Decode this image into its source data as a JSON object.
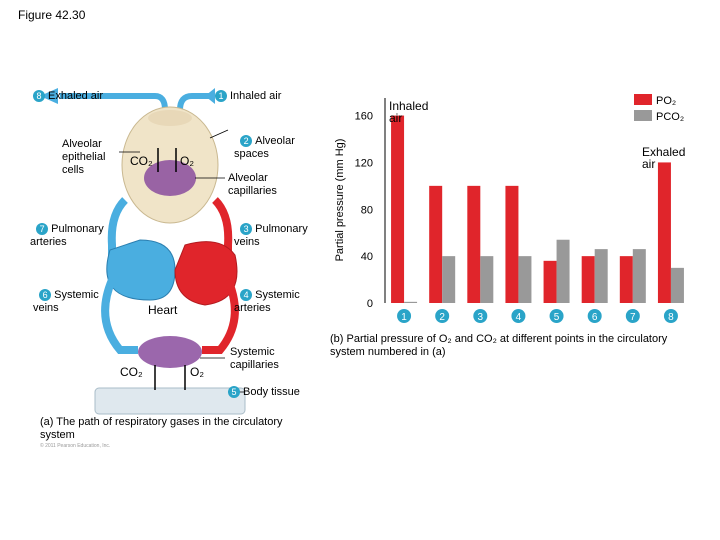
{
  "figure_title": "Figure 42.30",
  "panel_a": {
    "labels": {
      "exhaled_air": "Exhaled air",
      "inhaled_air": "Inhaled air",
      "alveolar_spaces": "Alveolar\nspaces",
      "alveolar_epithelial": "Alveolar\nepithelial\ncells",
      "co2_top": "CO₂",
      "o2_top": "O₂",
      "alveolar_capillaries": "Alveolar\ncapillaries",
      "pulmonary_arteries": "Pulmonary\narteries",
      "pulmonary_veins": "Pulmonary\nveins",
      "systemic_veins": "Systemic\nveins",
      "systemic_arteries": "Systemic\narteries",
      "heart": "Heart",
      "co2_bottom": "CO₂",
      "o2_bottom": "O₂",
      "systemic_capillaries": "Systemic\ncapillaries",
      "body_tissue": "Body tissue"
    },
    "numbers": [
      "1",
      "2",
      "3",
      "4",
      "5",
      "6",
      "7",
      "8"
    ],
    "caption": "(a) The path of respiratory gases in the circulatory system",
    "copyright": "© 2011 Pearson Education, Inc."
  },
  "chart_data": {
    "type": "bar",
    "categories": [
      "1",
      "2",
      "3",
      "4",
      "5",
      "6",
      "7",
      "8"
    ],
    "series": [
      {
        "name": "PO₂",
        "values": [
          160,
          100,
          100,
          100,
          36,
          40,
          40,
          120
        ],
        "color": "#e0252b"
      },
      {
        "name": "PCO₂",
        "values": [
          1,
          40,
          40,
          40,
          54,
          46,
          46,
          30
        ],
        "color": "#999999"
      }
    ],
    "ylabel": "Partial pressure (mm Hg)",
    "yticks": [
      0,
      40,
      80,
      120,
      160
    ],
    "ylim": [
      0,
      175
    ],
    "annotations": {
      "inhaled": "Inhaled\nair",
      "exhaled": "Exhaled\nair"
    },
    "legend_position": "top-right",
    "caption": "(b) Partial pressure of O₂ and CO₂ at different points in the circulatory system numbered in (a)"
  }
}
